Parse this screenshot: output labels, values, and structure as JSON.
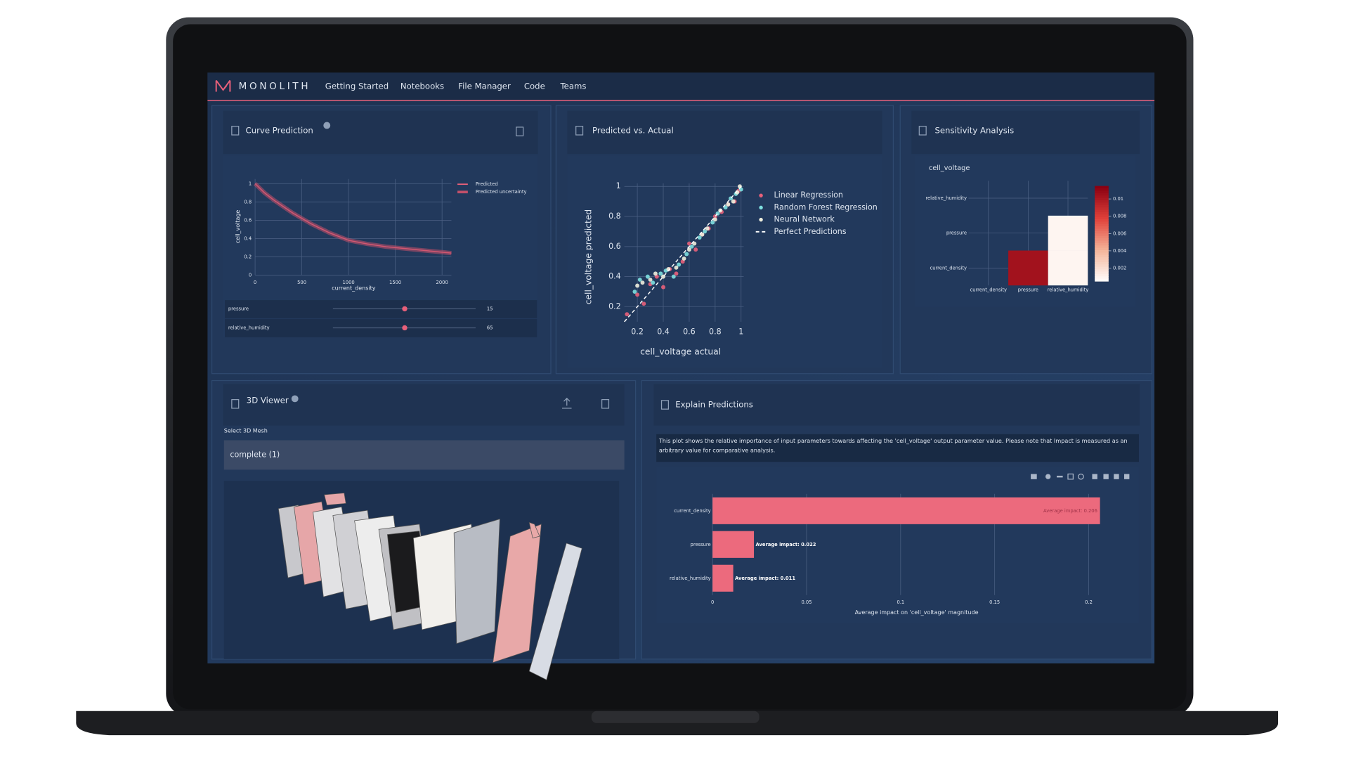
{
  "nav": {
    "brand": "MONOLITH",
    "items": [
      "Getting Started",
      "Notebooks",
      "File Manager",
      "Code",
      "Teams"
    ]
  },
  "panels": {
    "curve": {
      "title": "Curve Prediction",
      "sliders": [
        {
          "label": "pressure",
          "value": 15
        },
        {
          "label": "relative_humidity",
          "value": 65
        }
      ]
    },
    "pva": {
      "title": "Predicted vs. Actual"
    },
    "sensitivity": {
      "title": "Sensitivity Analysis"
    },
    "viewer": {
      "title": "3D Viewer",
      "select_label": "Select 3D Mesh",
      "selected": "complete (1)"
    },
    "explain": {
      "title": "Explain Predictions",
      "description": "This plot shows the relative importance of input parameters towards affecting the 'cell_voltage' output parameter value. Please note that Impact is measured as an arbitrary value for comparative analysis."
    }
  },
  "chart_data": [
    {
      "type": "line",
      "x_label": "current_density",
      "y_label": "cell_voltage",
      "x": [
        0,
        50,
        100,
        200,
        300,
        400,
        500,
        600,
        700,
        800,
        900,
        1000,
        1200,
        1400,
        1600,
        1800,
        2000,
        2100
      ],
      "series": [
        {
          "name": "Predicted",
          "color": "#e8607a",
          "values": [
            1,
            0.95,
            0.9,
            0.82,
            0.75,
            0.68,
            0.62,
            0.56,
            0.51,
            0.46,
            0.42,
            0.38,
            0.34,
            0.31,
            0.29,
            0.27,
            0.25,
            0.24
          ]
        },
        {
          "name": "Predicted uncertainty",
          "color": "#c2506a",
          "values": [
            1,
            0.95,
            0.9,
            0.82,
            0.75,
            0.68,
            0.62,
            0.56,
            0.51,
            0.46,
            0.42,
            0.38,
            0.34,
            0.31,
            0.29,
            0.27,
            0.25,
            0.24
          ]
        }
      ],
      "xlim": [
        0,
        2100
      ],
      "ylim": [
        0,
        1.05
      ],
      "xticks": [
        0,
        500,
        1000,
        1500,
        2000
      ],
      "yticks": [
        0,
        0.2,
        0.4,
        0.6,
        0.8,
        1
      ],
      "grid": true
    },
    {
      "type": "scatter",
      "x_label": "cell_voltage actual",
      "y_label": "cell_voltage predicted",
      "series": [
        {
          "name": "Linear Regression",
          "color": "#e8607a",
          "x": [
            0.12,
            0.2,
            0.25,
            0.3,
            0.35,
            0.4,
            0.45,
            0.5,
            0.55,
            0.6,
            0.65,
            0.7,
            0.75,
            0.8,
            0.85,
            0.9,
            0.95,
            0.98
          ],
          "values": [
            0.15,
            0.28,
            0.22,
            0.35,
            0.4,
            0.33,
            0.45,
            0.42,
            0.5,
            0.62,
            0.58,
            0.68,
            0.72,
            0.8,
            0.83,
            0.88,
            0.9,
            0.97
          ]
        },
        {
          "name": "Random Forest Regression",
          "color": "#7ee0e0",
          "x": [
            0.18,
            0.22,
            0.28,
            0.32,
            0.38,
            0.42,
            0.48,
            0.52,
            0.58,
            0.62,
            0.68,
            0.72,
            0.78,
            0.82,
            0.88,
            0.92,
            0.96,
            1.0
          ],
          "values": [
            0.3,
            0.38,
            0.4,
            0.36,
            0.42,
            0.44,
            0.4,
            0.48,
            0.55,
            0.6,
            0.66,
            0.7,
            0.76,
            0.82,
            0.86,
            0.92,
            0.95,
            0.98
          ]
        },
        {
          "name": "Neural Network",
          "color": "#eeeedd",
          "x": [
            0.2,
            0.24,
            0.3,
            0.34,
            0.4,
            0.44,
            0.5,
            0.56,
            0.6,
            0.64,
            0.7,
            0.74,
            0.8,
            0.84,
            0.9,
            0.94,
            0.97,
            0.99
          ],
          "values": [
            0.34,
            0.36,
            0.38,
            0.42,
            0.4,
            0.45,
            0.46,
            0.52,
            0.58,
            0.62,
            0.68,
            0.72,
            0.78,
            0.84,
            0.88,
            0.9,
            0.96,
            1.0
          ]
        },
        {
          "name": "Perfect Predictions",
          "color": "#ffffff",
          "dash": true,
          "x": [
            0.1,
            1
          ],
          "values": [
            0.1,
            1
          ]
        }
      ],
      "xlim": [
        0.1,
        1.02
      ],
      "ylim": [
        0.1,
        1.02
      ],
      "xticks": [
        0.2,
        0.4,
        0.6,
        0.8,
        1
      ],
      "yticks": [
        0.2,
        0.4,
        0.6,
        0.8,
        1
      ],
      "grid": true
    },
    {
      "type": "heatmap",
      "title": "cell_voltage",
      "x": [
        "current_density",
        "pressure",
        "relative_humidity"
      ],
      "y": [
        "current_density",
        "pressure",
        "relative_humidity"
      ],
      "z": [
        [
          null,
          0.0105,
          0.001
        ],
        [
          null,
          null,
          0.001
        ],
        [
          null,
          null,
          null
        ]
      ],
      "zlim": [
        0.0005,
        0.0115
      ],
      "zticks": [
        0.002,
        0.004,
        0.006,
        0.008,
        0.01
      ],
      "colorscale": [
        "#ffffff",
        "#f4b59a",
        "#e0413a",
        "#8b0012"
      ]
    },
    {
      "type": "hbar",
      "x_label": "Average impact on 'cell_voltage' magnitude",
      "color": "#ec6a7d",
      "categories": [
        "current_density",
        "pressure",
        "relative_humidity"
      ],
      "values": [
        0.206,
        0.022,
        0.011
      ],
      "value_labels": [
        "Average impact: 0.206",
        "Average impact: 0.022",
        "Average impact: 0.011"
      ],
      "xlim": [
        0,
        0.22
      ],
      "xticks": [
        0,
        0.05,
        0.1,
        0.15,
        0.2
      ],
      "grid": true
    }
  ]
}
